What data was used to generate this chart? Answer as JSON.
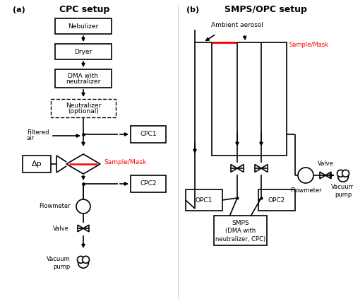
{
  "title_a": "CPC setup",
  "title_b": "SMPS/OPC setup",
  "label_a": "(a)",
  "label_b": "(b)",
  "red_color": "#ff0000",
  "black_color": "#000000",
  "white_color": "#ffffff",
  "bg_color": "#ffffff"
}
